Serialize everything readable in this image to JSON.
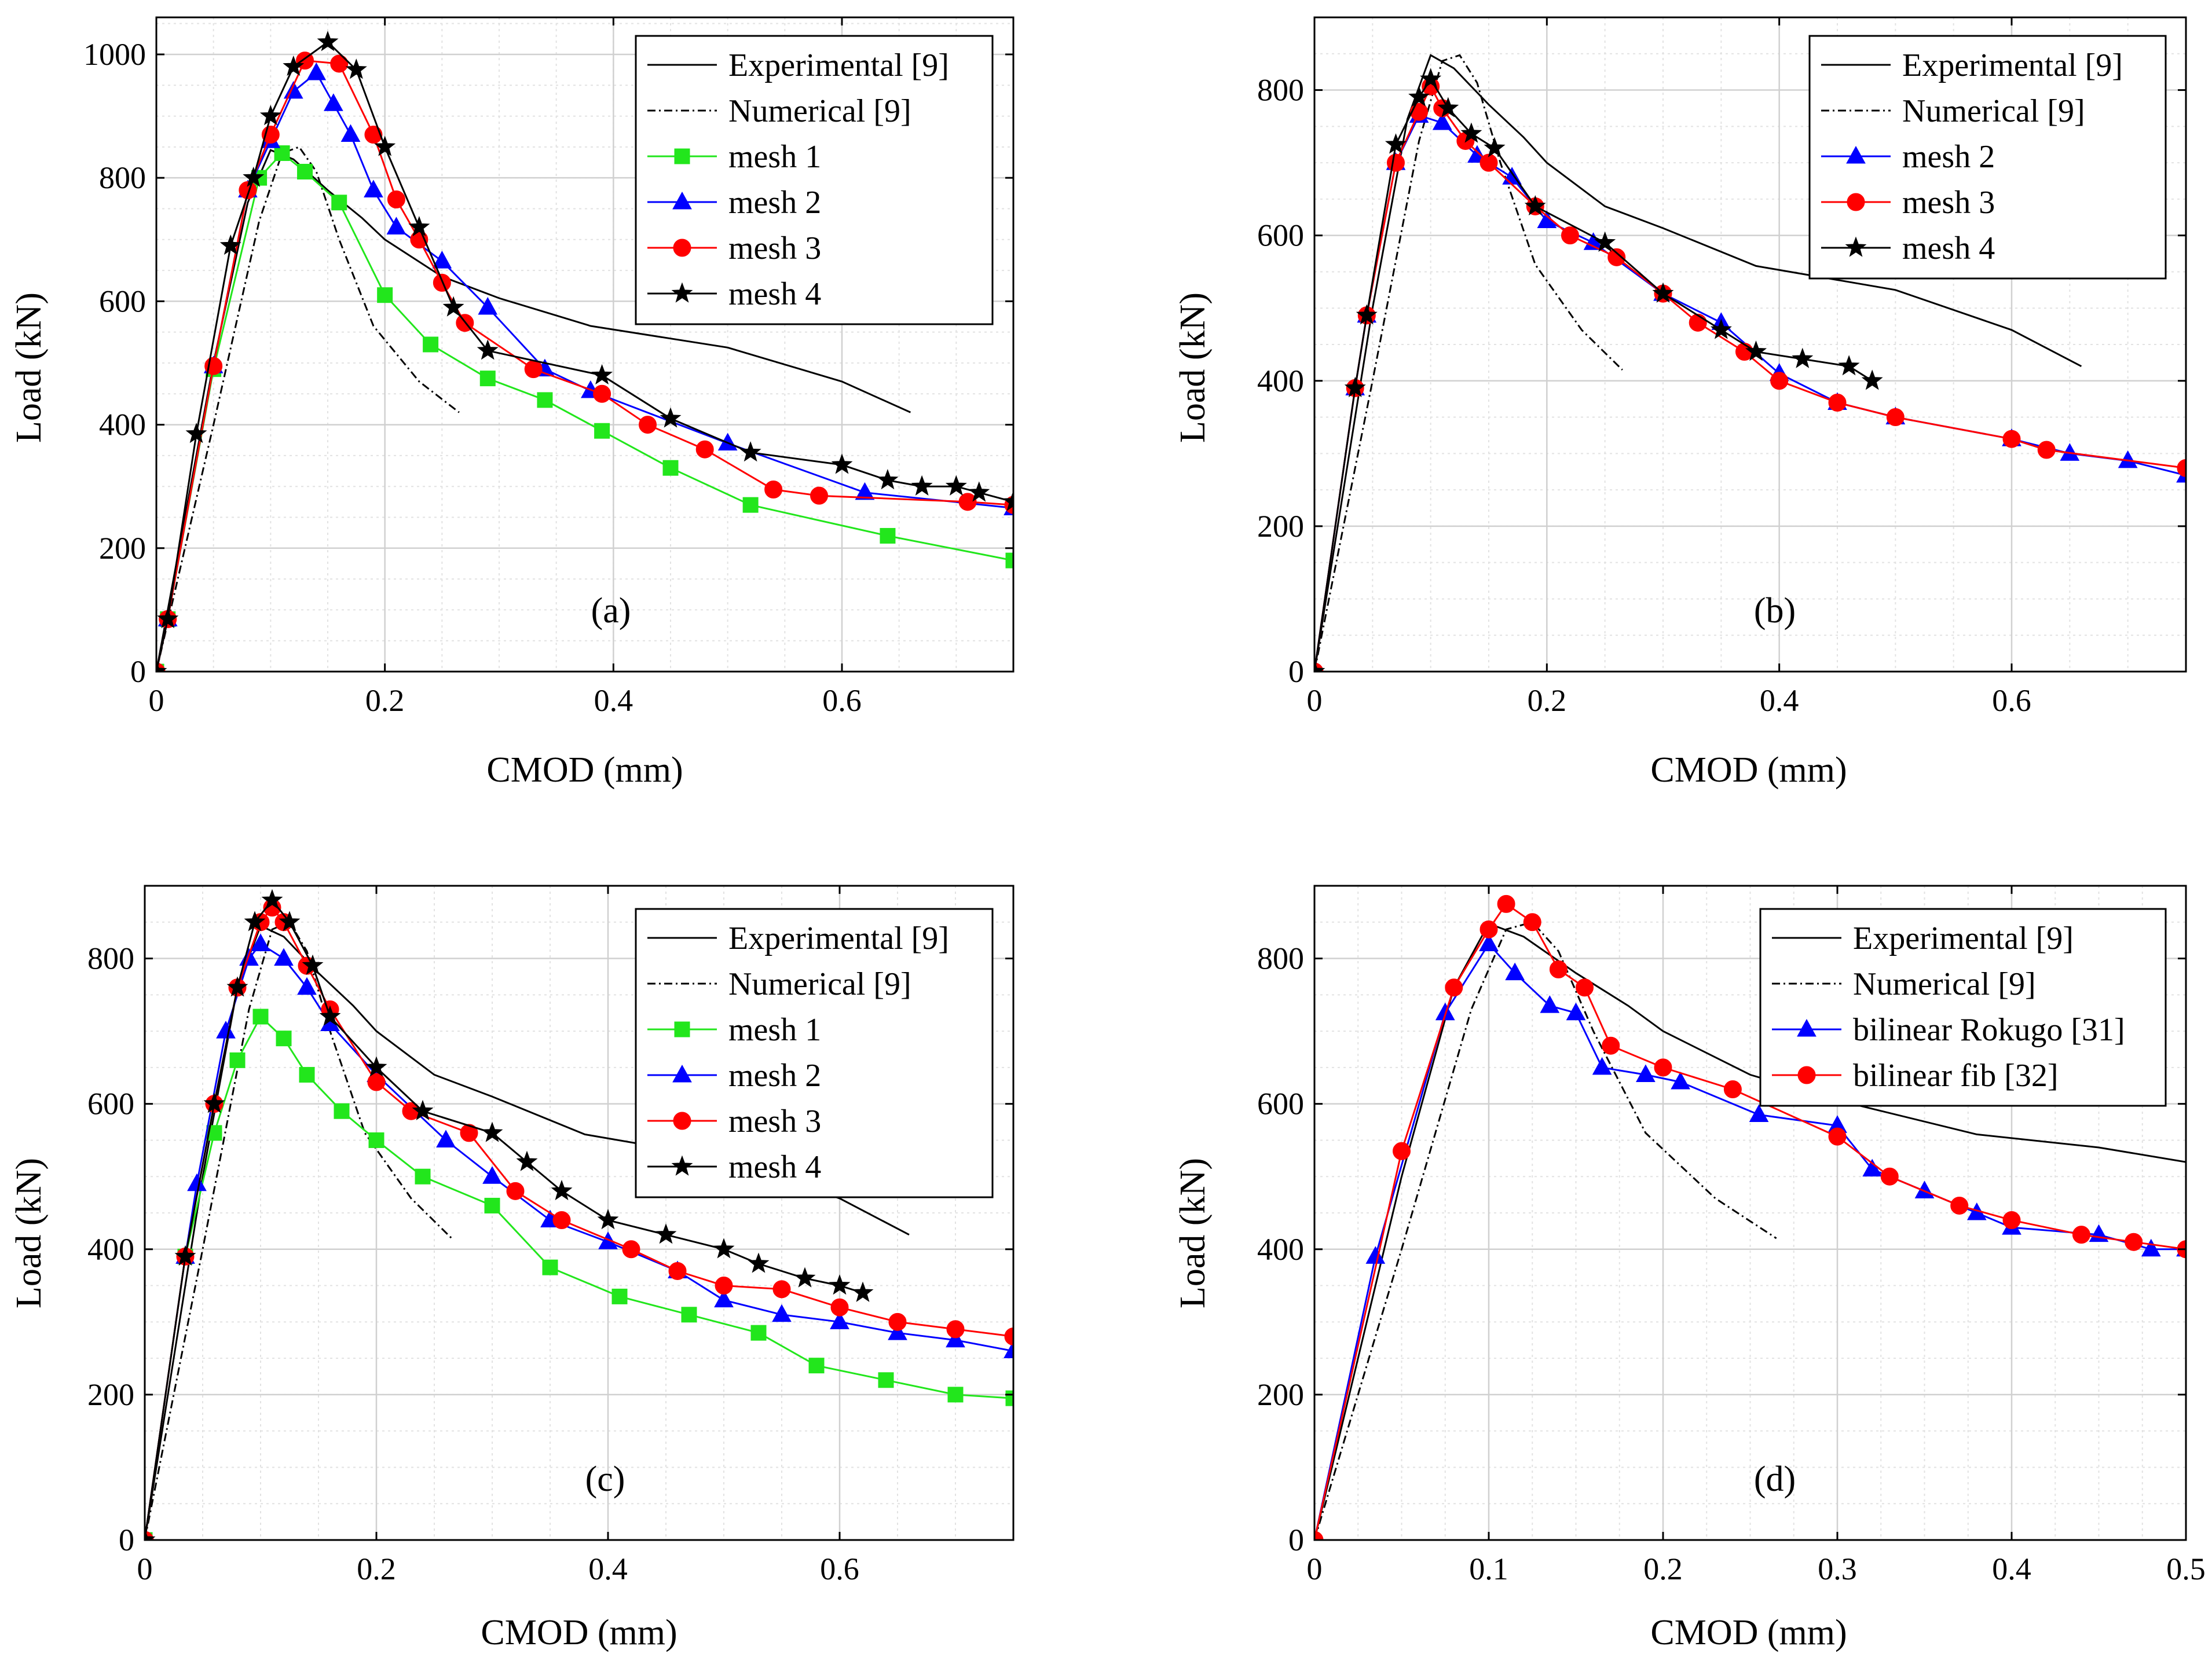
{
  "colors": {
    "experimental": "#000000",
    "numerical": "#000000",
    "mesh1": "#22e61c",
    "mesh2": "#0000ff",
    "mesh3": "#ff0000",
    "mesh4": "#000000",
    "grid_major": "#d0d0d0",
    "grid_minor": "#e2e2e2"
  },
  "chart_data": [
    {
      "type": "line",
      "panel_label": "(a)",
      "xlabel": "CMOD (mm)",
      "ylabel": "Load (kN)",
      "xlim": [
        0,
        0.75
      ],
      "ylim": [
        0,
        1060
      ],
      "xticks": [
        0,
        0.2,
        0.4,
        0.6
      ],
      "xtick_labels": [
        "0",
        "0.2",
        "0.4",
        "0.6"
      ],
      "yticks": [
        0,
        200,
        400,
        600,
        800,
        1000
      ],
      "ytick_labels": [
        "0",
        "200",
        "400",
        "600",
        "800",
        "1000"
      ],
      "legend_position": "top-right",
      "grid": true,
      "series": [
        {
          "name": "Experimental [9]",
          "key": "experimental",
          "x": [
            0,
            0.05,
            0.08,
            0.1,
            0.12,
            0.15,
            0.18,
            0.2,
            0.25,
            0.3,
            0.38,
            0.5,
            0.6,
            0.66
          ],
          "y": [
            0,
            500,
            760,
            845,
            830,
            780,
            735,
            700,
            640,
            605,
            560,
            525,
            470,
            420
          ]
        },
        {
          "name": "Numerical [9]",
          "key": "numerical",
          "x": [
            0,
            0.05,
            0.09,
            0.11,
            0.125,
            0.14,
            0.16,
            0.19,
            0.23,
            0.265
          ],
          "y": [
            0,
            400,
            730,
            840,
            850,
            810,
            700,
            560,
            470,
            420
          ]
        },
        {
          "name": "mesh 1",
          "key": "mesh1",
          "marker": "square",
          "x": [
            0,
            0.01,
            0.05,
            0.09,
            0.11,
            0.13,
            0.16,
            0.2,
            0.24,
            0.29,
            0.34,
            0.39,
            0.45,
            0.52,
            0.64,
            0.75
          ],
          "y": [
            0,
            85,
            490,
            800,
            840,
            810,
            760,
            610,
            530,
            475,
            440,
            390,
            330,
            270,
            220,
            180
          ]
        },
        {
          "name": "mesh 2",
          "key": "mesh2",
          "marker": "triangle",
          "x": [
            0,
            0.01,
            0.05,
            0.08,
            0.1,
            0.12,
            0.14,
            0.155,
            0.17,
            0.19,
            0.21,
            0.25,
            0.29,
            0.34,
            0.38,
            0.5,
            0.62,
            0.75
          ],
          "y": [
            0,
            85,
            495,
            780,
            860,
            940,
            970,
            920,
            870,
            780,
            720,
            665,
            590,
            490,
            455,
            370,
            290,
            265
          ]
        },
        {
          "name": "mesh 3",
          "key": "mesh3",
          "marker": "circle",
          "x": [
            0,
            0.01,
            0.05,
            0.08,
            0.1,
            0.13,
            0.16,
            0.19,
            0.21,
            0.23,
            0.25,
            0.27,
            0.33,
            0.39,
            0.43,
            0.48,
            0.54,
            0.58,
            0.71,
            0.75
          ],
          "y": [
            0,
            85,
            495,
            780,
            870,
            990,
            985,
            870,
            765,
            700,
            630,
            565,
            490,
            450,
            400,
            360,
            295,
            285,
            275,
            270
          ]
        },
        {
          "name": "mesh 4",
          "key": "mesh4",
          "marker": "star",
          "x": [
            0,
            0.01,
            0.035,
            0.065,
            0.085,
            0.1,
            0.12,
            0.15,
            0.175,
            0.2,
            0.23,
            0.26,
            0.29,
            0.39,
            0.45,
            0.52,
            0.6,
            0.64,
            0.67,
            0.7,
            0.72,
            0.75
          ],
          "y": [
            0,
            85,
            385,
            690,
            800,
            900,
            980,
            1020,
            975,
            850,
            720,
            590,
            520,
            480,
            410,
            355,
            335,
            310,
            300,
            300,
            290,
            275
          ]
        }
      ]
    },
    {
      "type": "line",
      "panel_label": "(b)",
      "xlabel": "CMOD (mm)",
      "ylabel": "Load (kN)",
      "xlim": [
        0,
        0.75
      ],
      "ylim": [
        0,
        900
      ],
      "xticks": [
        0,
        0.2,
        0.4,
        0.6
      ],
      "xtick_labels": [
        "0",
        "0.2",
        "0.4",
        "0.6"
      ],
      "yticks": [
        0,
        200,
        400,
        600,
        800
      ],
      "ytick_labels": [
        "0",
        "200",
        "400",
        "600",
        "800"
      ],
      "legend_position": "top-right",
      "grid": true,
      "series": [
        {
          "name": "Experimental [9]",
          "key": "experimental",
          "x": [
            0,
            0.05,
            0.08,
            0.1,
            0.12,
            0.15,
            0.18,
            0.2,
            0.25,
            0.3,
            0.38,
            0.5,
            0.6,
            0.66
          ],
          "y": [
            0,
            500,
            760,
            848,
            830,
            780,
            735,
            700,
            640,
            610,
            558,
            525,
            470,
            420
          ]
        },
        {
          "name": "Numerical [9]",
          "key": "numerical",
          "x": [
            0,
            0.05,
            0.09,
            0.11,
            0.125,
            0.14,
            0.16,
            0.19,
            0.23,
            0.265
          ],
          "y": [
            0,
            400,
            730,
            840,
            848,
            810,
            700,
            560,
            470,
            415
          ]
        },
        {
          "name": "mesh 2",
          "key": "mesh2",
          "marker": "triangle",
          "x": [
            0,
            0.035,
            0.045,
            0.07,
            0.09,
            0.11,
            0.14,
            0.17,
            0.2,
            0.24,
            0.3,
            0.35,
            0.4,
            0.45,
            0.5,
            0.6,
            0.65,
            0.7,
            0.75
          ],
          "y": [
            0,
            390,
            490,
            700,
            765,
            755,
            710,
            680,
            620,
            590,
            520,
            480,
            410,
            370,
            350,
            320,
            300,
            290,
            270
          ]
        },
        {
          "name": "mesh 3",
          "key": "mesh3",
          "marker": "circle",
          "x": [
            0,
            0.035,
            0.045,
            0.07,
            0.09,
            0.1,
            0.11,
            0.13,
            0.15,
            0.19,
            0.22,
            0.26,
            0.3,
            0.33,
            0.37,
            0.4,
            0.45,
            0.5,
            0.6,
            0.63,
            0.75
          ],
          "y": [
            0,
            390,
            490,
            700,
            770,
            805,
            775,
            730,
            700,
            640,
            600,
            570,
            520,
            480,
            440,
            400,
            370,
            350,
            320,
            305,
            280
          ]
        },
        {
          "name": "mesh 4",
          "key": "mesh4",
          "marker": "star",
          "x": [
            0,
            0.035,
            0.045,
            0.07,
            0.09,
            0.1,
            0.115,
            0.135,
            0.155,
            0.19,
            0.25,
            0.3,
            0.35,
            0.38,
            0.42,
            0.46,
            0.48
          ],
          "y": [
            0,
            390,
            490,
            725,
            790,
            815,
            775,
            740,
            720,
            640,
            590,
            520,
            470,
            440,
            430,
            420,
            400
          ]
        }
      ]
    },
    {
      "type": "line",
      "panel_label": "(c)",
      "xlabel": "CMOD (mm)",
      "ylabel": "Load (kN)",
      "xlim": [
        0,
        0.75
      ],
      "ylim": [
        0,
        900
      ],
      "xticks": [
        0,
        0.2,
        0.4,
        0.6
      ],
      "xtick_labels": [
        "0",
        "0.2",
        "0.4",
        "0.6"
      ],
      "yticks": [
        0,
        200,
        400,
        600,
        800
      ],
      "ytick_labels": [
        "0",
        "200",
        "400",
        "600",
        "800"
      ],
      "legend_position": "top-right",
      "grid": true,
      "series": [
        {
          "name": "Experimental [9]",
          "key": "experimental",
          "x": [
            0,
            0.05,
            0.08,
            0.1,
            0.12,
            0.15,
            0.18,
            0.2,
            0.25,
            0.3,
            0.38,
            0.5,
            0.6,
            0.66
          ],
          "y": [
            0,
            500,
            760,
            845,
            830,
            780,
            735,
            700,
            640,
            610,
            558,
            525,
            470,
            420
          ]
        },
        {
          "name": "Numerical [9]",
          "key": "numerical",
          "x": [
            0,
            0.05,
            0.09,
            0.11,
            0.125,
            0.14,
            0.16,
            0.19,
            0.23,
            0.265
          ],
          "y": [
            0,
            400,
            730,
            840,
            850,
            810,
            700,
            560,
            470,
            415
          ]
        },
        {
          "name": "mesh 1",
          "key": "mesh1",
          "marker": "square",
          "x": [
            0,
            0.035,
            0.06,
            0.08,
            0.1,
            0.12,
            0.14,
            0.17,
            0.2,
            0.24,
            0.3,
            0.35,
            0.41,
            0.47,
            0.53,
            0.58,
            0.64,
            0.7,
            0.75
          ],
          "y": [
            0,
            390,
            560,
            660,
            720,
            690,
            640,
            590,
            550,
            500,
            460,
            375,
            335,
            310,
            285,
            240,
            220,
            200,
            195
          ]
        },
        {
          "name": "mesh 2",
          "key": "mesh2",
          "marker": "triangle",
          "x": [
            0,
            0.035,
            0.045,
            0.07,
            0.09,
            0.1,
            0.12,
            0.14,
            0.16,
            0.2,
            0.26,
            0.3,
            0.35,
            0.4,
            0.46,
            0.5,
            0.55,
            0.6,
            0.65,
            0.7,
            0.75
          ],
          "y": [
            0,
            390,
            490,
            700,
            800,
            820,
            800,
            760,
            710,
            640,
            550,
            500,
            440,
            410,
            370,
            330,
            310,
            300,
            285,
            275,
            260
          ]
        },
        {
          "name": "mesh 3",
          "key": "mesh3",
          "marker": "circle",
          "x": [
            0,
            0.035,
            0.06,
            0.08,
            0.1,
            0.11,
            0.12,
            0.14,
            0.16,
            0.2,
            0.23,
            0.28,
            0.32,
            0.36,
            0.42,
            0.46,
            0.5,
            0.55,
            0.6,
            0.65,
            0.7,
            0.75
          ],
          "y": [
            0,
            390,
            600,
            760,
            850,
            870,
            850,
            790,
            730,
            630,
            590,
            560,
            480,
            440,
            400,
            370,
            350,
            345,
            320,
            300,
            290,
            280
          ]
        },
        {
          "name": "mesh 4",
          "key": "mesh4",
          "marker": "star",
          "x": [
            0,
            0.035,
            0.06,
            0.08,
            0.095,
            0.11,
            0.125,
            0.145,
            0.16,
            0.2,
            0.24,
            0.3,
            0.33,
            0.36,
            0.4,
            0.45,
            0.5,
            0.53,
            0.57,
            0.6,
            0.62
          ],
          "y": [
            0,
            390,
            600,
            760,
            850,
            880,
            850,
            790,
            720,
            650,
            590,
            560,
            520,
            480,
            440,
            420,
            400,
            380,
            360,
            350,
            340
          ]
        }
      ]
    },
    {
      "type": "line",
      "panel_label": "(d)",
      "xlabel": "CMOD (mm)",
      "ylabel": "Load (kN)",
      "xlim": [
        0,
        0.5
      ],
      "ylim": [
        0,
        900
      ],
      "xticks": [
        0,
        0.1,
        0.2,
        0.3,
        0.4,
        0.5
      ],
      "xtick_labels": [
        "0",
        "0.1",
        "0.2",
        "0.3",
        "0.4",
        "0.5"
      ],
      "yticks": [
        0,
        200,
        400,
        600,
        800
      ],
      "ytick_labels": [
        "0",
        "200",
        "400",
        "600",
        "800"
      ],
      "legend_position": "top-right",
      "grid": true,
      "series": [
        {
          "name": "Experimental [9]",
          "key": "experimental",
          "x": [
            0,
            0.05,
            0.08,
            0.1,
            0.12,
            0.15,
            0.18,
            0.2,
            0.25,
            0.3,
            0.38,
            0.45,
            0.5
          ],
          "y": [
            0,
            500,
            760,
            848,
            830,
            780,
            735,
            700,
            640,
            605,
            558,
            540,
            520
          ]
        },
        {
          "name": "Numerical [9]",
          "key": "numerical",
          "x": [
            0,
            0.05,
            0.09,
            0.11,
            0.125,
            0.14,
            0.16,
            0.19,
            0.23,
            0.265
          ],
          "y": [
            0,
            400,
            730,
            840,
            850,
            810,
            700,
            560,
            470,
            415
          ]
        },
        {
          "name": "bilinear Rokugo [31]",
          "key": "mesh2",
          "marker": "triangle",
          "x": [
            0,
            0.035,
            0.075,
            0.1,
            0.115,
            0.135,
            0.15,
            0.165,
            0.19,
            0.21,
            0.255,
            0.3,
            0.32,
            0.35,
            0.38,
            0.4,
            0.45,
            0.48,
            0.5
          ],
          "y": [
            0,
            390,
            725,
            820,
            780,
            735,
            725,
            650,
            640,
            630,
            585,
            570,
            510,
            480,
            450,
            430,
            420,
            400,
            400
          ]
        },
        {
          "name": "bilinear fib [32]",
          "key": "mesh3",
          "marker": "circle",
          "x": [
            0,
            0.05,
            0.08,
            0.1,
            0.11,
            0.125,
            0.14,
            0.155,
            0.17,
            0.2,
            0.24,
            0.3,
            0.33,
            0.37,
            0.4,
            0.44,
            0.47,
            0.5
          ],
          "y": [
            0,
            535,
            760,
            840,
            875,
            850,
            785,
            760,
            680,
            650,
            620,
            555,
            500,
            460,
            440,
            420,
            410,
            400
          ]
        }
      ]
    }
  ]
}
